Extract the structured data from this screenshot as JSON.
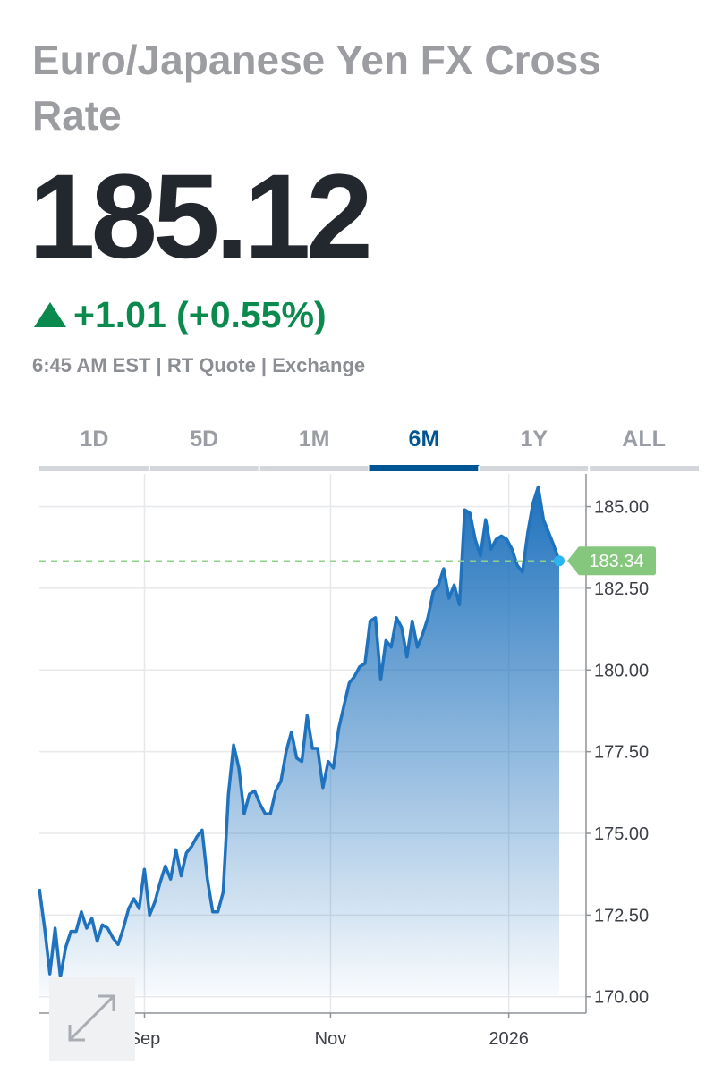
{
  "header": {
    "title": "Euro/Japanese Yen FX Cross Rate",
    "price": "185.12",
    "change": "+1.01 (+0.55%)",
    "quote_info": "6:45 AM EST | RT Quote | Exchange"
  },
  "tabs": {
    "items": [
      "1D",
      "5D",
      "1M",
      "6M",
      "1Y",
      "ALL"
    ],
    "active": 3
  },
  "chart_data": {
    "type": "area",
    "color": "#1f72bd",
    "values": [
      173.3,
      172.1,
      170.7,
      172.1,
      170.6,
      171.5,
      172.0,
      172.0,
      172.6,
      172.1,
      172.4,
      171.7,
      172.2,
      172.1,
      171.8,
      171.6,
      172.1,
      172.7,
      173.0,
      172.7,
      173.9,
      172.5,
      172.9,
      173.5,
      174.0,
      173.6,
      174.5,
      173.7,
      174.4,
      174.6,
      174.9,
      175.1,
      173.6,
      172.6,
      172.6,
      173.2,
      176.2,
      177.7,
      177.0,
      175.6,
      176.2,
      176.3,
      175.9,
      175.6,
      175.6,
      176.3,
      176.6,
      177.5,
      178.1,
      177.3,
      177.2,
      178.6,
      177.6,
      177.6,
      176.4,
      177.2,
      177.0,
      178.2,
      178.9,
      179.6,
      179.8,
      180.1,
      180.2,
      181.5,
      181.6,
      179.7,
      180.9,
      180.7,
      181.6,
      181.3,
      180.4,
      181.5,
      180.7,
      181.1,
      181.6,
      182.4,
      182.6,
      183.1,
      182.2,
      182.6,
      182.0,
      184.9,
      184.8,
      184.0,
      183.5,
      184.6,
      183.7,
      184.0,
      184.1,
      184.0,
      183.7,
      183.2,
      183.0,
      184.2,
      185.1,
      185.6,
      184.6,
      184.2,
      183.8,
      183.34
    ],
    "xlim": [
      0,
      104
    ],
    "xticks": [
      {
        "value": 20,
        "label": "Sep"
      },
      {
        "value": 55.4,
        "label": "Nov"
      },
      {
        "value": 89.3,
        "label": "2026"
      }
    ],
    "ylim": [
      169.5,
      186
    ],
    "yticks": [
      {
        "value": 170,
        "label": "170.00"
      },
      {
        "value": 172.5,
        "label": "172.50"
      },
      {
        "value": 175,
        "label": "175.00"
      },
      {
        "value": 177.5,
        "label": "177.50"
      },
      {
        "value": 180,
        "label": "180.00"
      },
      {
        "value": 182.5,
        "label": "182.50"
      },
      {
        "value": 185,
        "label": "185.00"
      }
    ],
    "reference_line": 183.34,
    "grid": true
  }
}
